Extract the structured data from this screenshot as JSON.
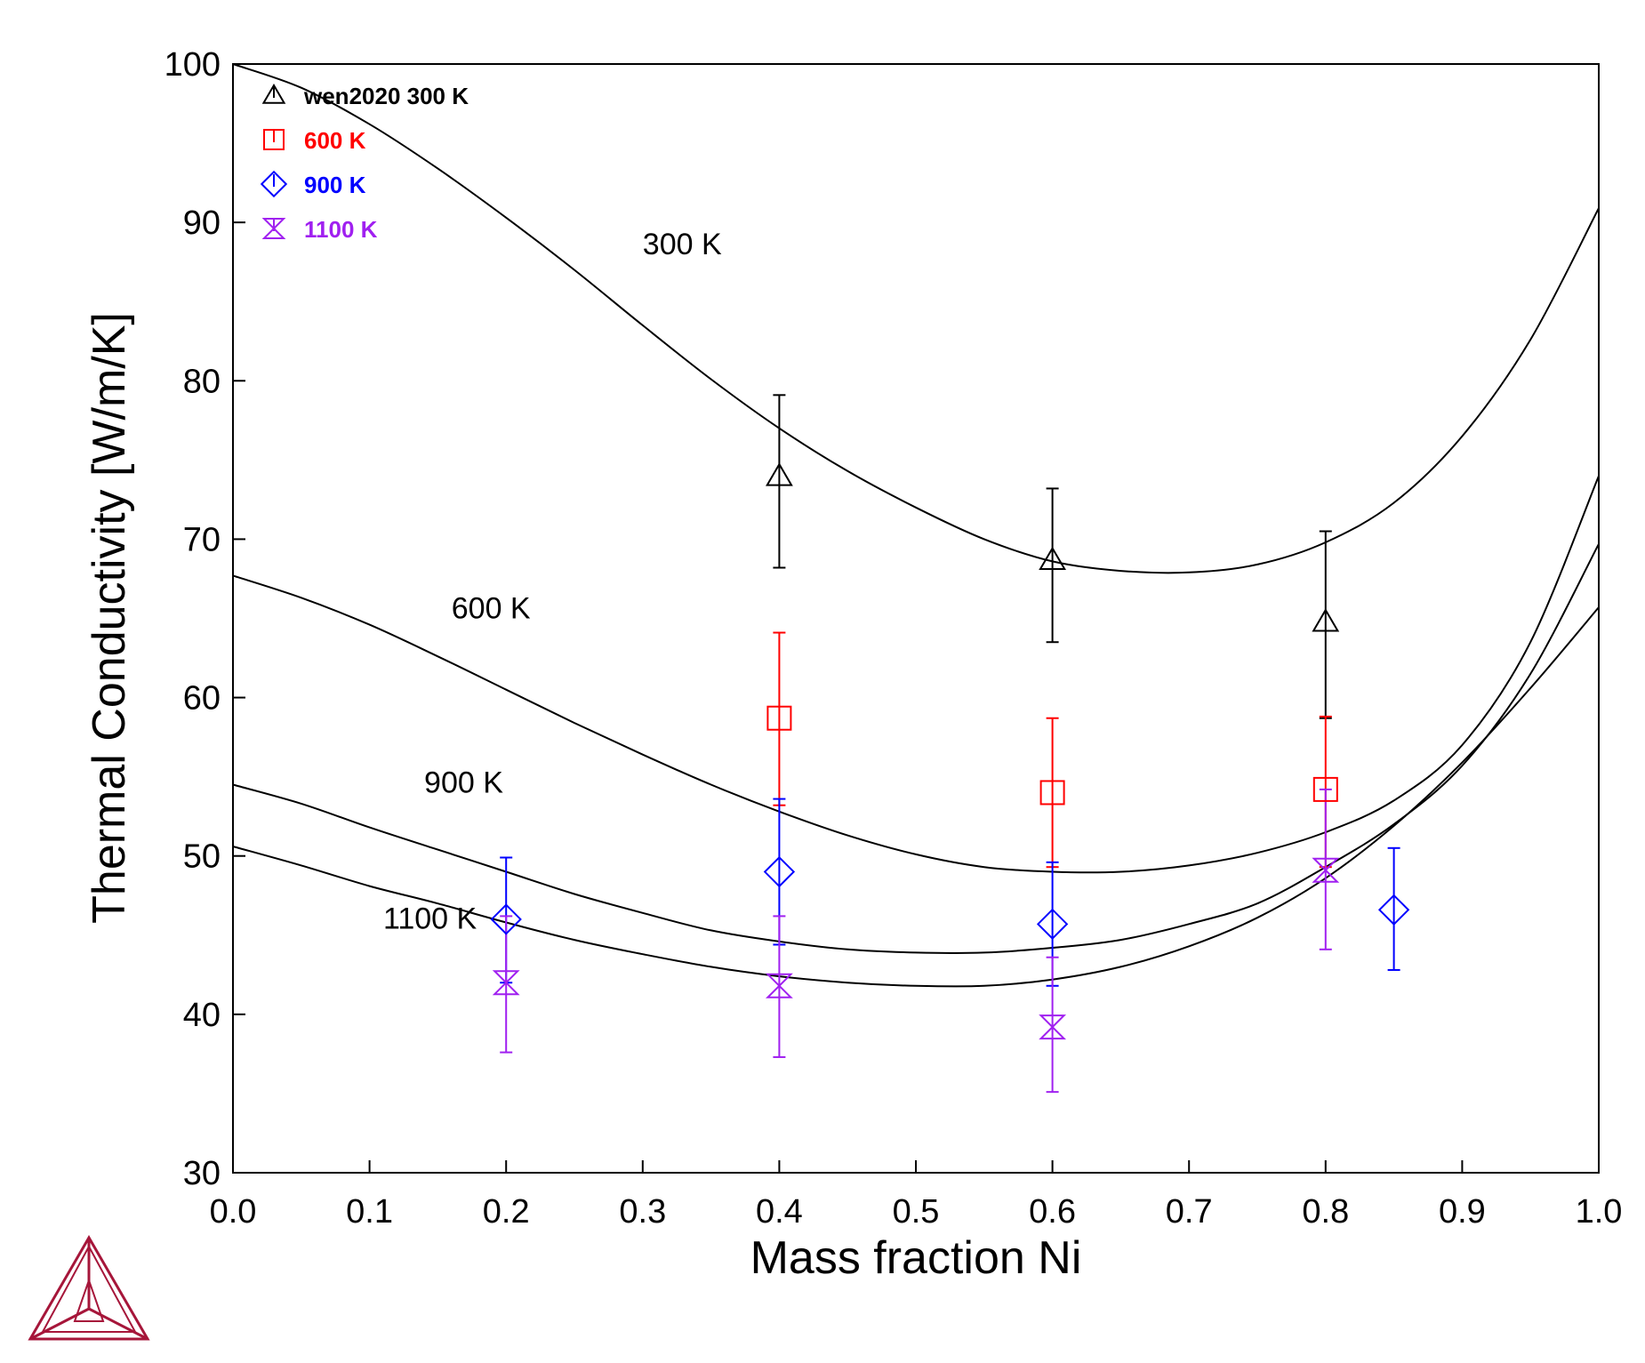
{
  "colors": {
    "s300": "#000000",
    "s600": "#ff0000",
    "s900": "#0000ff",
    "s1100": "#a020f0",
    "logo": "#a6163a"
  },
  "logo": {
    "icon": "thermo-calc-triangle-logo"
  },
  "chart_data": {
    "type": "scatter",
    "xlabel": "Mass fraction Ni",
    "ylabel": "Thermal Conductivity [W/m/K]",
    "xlim": [
      0.0,
      1.0
    ],
    "ylim": [
      30,
      100
    ],
    "x_ticks": [
      "0.0",
      "0.1",
      "0.2",
      "0.3",
      "0.4",
      "0.5",
      "0.6",
      "0.7",
      "0.8",
      "0.9",
      "1.0"
    ],
    "y_ticks": [
      "30",
      "40",
      "50",
      "60",
      "70",
      "80",
      "90",
      "100"
    ],
    "grid": false,
    "legend_position": "top-left",
    "legend": [
      {
        "label": "wen2020 300 K",
        "marker": "triangle",
        "color": "#000000"
      },
      {
        "label": "600 K",
        "marker": "square",
        "color": "#ff0000"
      },
      {
        "label": "900 K",
        "marker": "diamond",
        "color": "#0000ff"
      },
      {
        "label": "1100 K",
        "marker": "hourglass",
        "color": "#a020f0"
      }
    ],
    "curves": [
      {
        "label": "300 K",
        "label_at": [
          0.3,
          88.0
        ],
        "x": [
          0.0,
          0.05,
          0.1,
          0.15,
          0.2,
          0.25,
          0.3,
          0.35,
          0.4,
          0.45,
          0.5,
          0.55,
          0.6,
          0.65,
          0.7,
          0.75,
          0.8,
          0.85,
          0.9,
          0.95,
          1.0
        ],
        "y": [
          100.0,
          98.5,
          96.2,
          93.4,
          90.3,
          87.0,
          83.5,
          80.1,
          77.0,
          74.3,
          72.0,
          70.0,
          68.6,
          68.0,
          67.9,
          68.4,
          69.8,
          72.3,
          76.5,
          82.6,
          90.9
        ]
      },
      {
        "label": "600 K",
        "label_at": [
          0.16,
          65.0
        ],
        "x": [
          0.0,
          0.05,
          0.1,
          0.15,
          0.2,
          0.25,
          0.3,
          0.35,
          0.4,
          0.45,
          0.5,
          0.55,
          0.6,
          0.65,
          0.7,
          0.75,
          0.8,
          0.85,
          0.9,
          0.95,
          1.0
        ],
        "y": [
          67.7,
          66.3,
          64.6,
          62.6,
          60.5,
          58.4,
          56.4,
          54.5,
          52.8,
          51.3,
          50.1,
          49.3,
          49.0,
          49.0,
          49.4,
          50.2,
          51.5,
          53.5,
          57.0,
          63.5,
          74.0
        ]
      },
      {
        "label": "900 K",
        "label_at": [
          0.14,
          54.0
        ],
        "x": [
          0.0,
          0.05,
          0.1,
          0.15,
          0.2,
          0.25,
          0.3,
          0.35,
          0.4,
          0.45,
          0.5,
          0.55,
          0.6,
          0.65,
          0.7,
          0.75,
          0.8,
          0.85,
          0.9,
          0.95,
          1.0
        ],
        "y": [
          54.5,
          53.3,
          51.8,
          50.4,
          49.0,
          47.6,
          46.4,
          45.3,
          44.6,
          44.1,
          43.9,
          43.9,
          44.2,
          44.7,
          45.7,
          47.0,
          49.3,
          52.0,
          55.7,
          61.5,
          69.7
        ]
      },
      {
        "label": "1100 K",
        "label_at": [
          0.11,
          45.4
        ],
        "x": [
          0.0,
          0.05,
          0.1,
          0.15,
          0.2,
          0.25,
          0.3,
          0.35,
          0.4,
          0.45,
          0.5,
          0.55,
          0.6,
          0.65,
          0.7,
          0.75,
          0.8,
          0.85,
          0.9,
          0.95,
          1.0
        ],
        "y": [
          50.6,
          49.4,
          48.1,
          47.0,
          45.8,
          44.7,
          43.8,
          43.0,
          42.4,
          42.0,
          41.8,
          41.8,
          42.2,
          43.0,
          44.3,
          46.1,
          48.6,
          51.9,
          55.9,
          60.6,
          65.7
        ]
      }
    ],
    "series": [
      {
        "name": "wen2020 300 K",
        "marker": "triangle",
        "points": [
          {
            "x": 0.4,
            "y": 74.0,
            "lo": 68.2,
            "hi": 79.1
          },
          {
            "x": 0.6,
            "y": 68.7,
            "lo": 63.5,
            "hi": 73.2
          },
          {
            "x": 0.8,
            "y": 64.8,
            "lo": 58.7,
            "hi": 70.5
          }
        ]
      },
      {
        "name": "600 K",
        "marker": "square",
        "points": [
          {
            "x": 0.4,
            "y": 58.7,
            "lo": 53.2,
            "hi": 64.1
          },
          {
            "x": 0.6,
            "y": 54.0,
            "lo": 49.3,
            "hi": 58.7
          },
          {
            "x": 0.8,
            "y": 54.2,
            "lo": 49.3,
            "hi": 58.8
          }
        ]
      },
      {
        "name": "900 K",
        "marker": "diamond",
        "points": [
          {
            "x": 0.2,
            "y": 46.0,
            "lo": 42.0,
            "hi": 49.9
          },
          {
            "x": 0.4,
            "y": 49.0,
            "lo": 44.4,
            "hi": 53.6
          },
          {
            "x": 0.6,
            "y": 45.7,
            "lo": 41.8,
            "hi": 49.6
          },
          {
            "x": 0.85,
            "y": 46.6,
            "lo": 42.8,
            "hi": 50.5
          }
        ]
      },
      {
        "name": "1100 K",
        "marker": "hourglass",
        "points": [
          {
            "x": 0.2,
            "y": 42.0,
            "lo": 37.6,
            "hi": 46.2
          },
          {
            "x": 0.4,
            "y": 41.8,
            "lo": 37.3,
            "hi": 46.2
          },
          {
            "x": 0.6,
            "y": 39.2,
            "lo": 35.1,
            "hi": 43.6
          },
          {
            "x": 0.8,
            "y": 49.1,
            "lo": 44.1,
            "hi": 54.2
          }
        ]
      }
    ]
  }
}
